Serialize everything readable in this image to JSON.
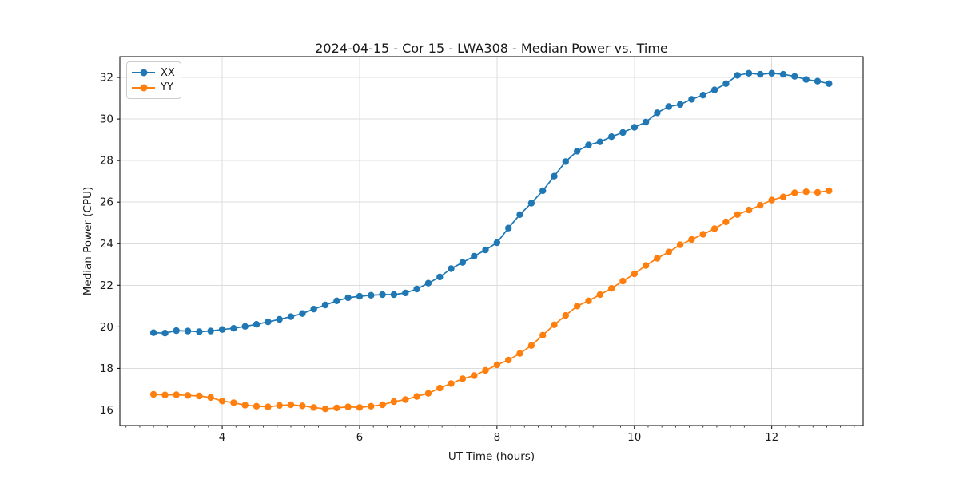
{
  "chart_data": {
    "type": "line",
    "title": "2024-04-15 - Cor 15 - LWA308 - Median Power vs. Time",
    "xlabel": "UT Time (hours)",
    "ylabel": "Median Power (CPU)",
    "xlim": [
      2.51,
      13.33
    ],
    "ylim": [
      15.25,
      33.0
    ],
    "xticks": [
      4,
      6,
      8,
      10,
      12
    ],
    "yticks": [
      16,
      18,
      20,
      22,
      24,
      26,
      28,
      30,
      32
    ],
    "minor_xticks": {
      "start": 2.6,
      "end": 13.2,
      "step": 0.2
    },
    "grid": true,
    "grid_color": "#dcdcdc",
    "spine_color": "#000000",
    "legend": {
      "position": "upper left",
      "entries": [
        "XX",
        "YY"
      ]
    },
    "x": [
      3.0,
      3.167,
      3.333,
      3.5,
      3.667,
      3.833,
      4.0,
      4.167,
      4.333,
      4.5,
      4.667,
      4.833,
      5.0,
      5.167,
      5.333,
      5.5,
      5.667,
      5.833,
      6.0,
      6.167,
      6.333,
      6.5,
      6.667,
      6.833,
      7.0,
      7.167,
      7.333,
      7.5,
      7.667,
      7.833,
      8.0,
      8.167,
      8.333,
      8.5,
      8.667,
      8.833,
      9.0,
      9.167,
      9.333,
      9.5,
      9.667,
      9.833,
      10.0,
      10.167,
      10.333,
      10.5,
      10.667,
      10.833,
      11.0,
      11.167,
      11.333,
      11.5,
      11.667,
      11.833,
      12.0,
      12.167,
      12.333,
      12.5,
      12.667,
      12.833
    ],
    "series": [
      {
        "name": "XX",
        "color": "#1f77b4",
        "values": [
          19.72,
          19.7,
          19.82,
          19.8,
          19.77,
          19.8,
          19.87,
          19.93,
          20.02,
          20.12,
          20.24,
          20.36,
          20.49,
          20.64,
          20.85,
          21.05,
          21.25,
          21.4,
          21.47,
          21.52,
          21.55,
          21.55,
          21.63,
          21.82,
          22.1,
          22.4,
          22.8,
          23.1,
          23.4,
          23.7,
          24.05,
          24.75,
          25.4,
          25.95,
          26.55,
          27.25,
          27.95,
          28.45,
          28.75,
          28.9,
          29.15,
          29.35,
          29.6,
          29.85,
          30.3,
          30.6,
          30.7,
          30.95,
          31.15,
          31.4,
          31.7,
          32.1,
          32.2,
          32.15,
          32.2,
          32.15,
          32.05,
          31.9,
          31.82,
          31.7
        ]
      },
      {
        "name": "YY",
        "color": "#ff7f0e",
        "values": [
          16.75,
          16.72,
          16.73,
          16.7,
          16.67,
          16.6,
          16.43,
          16.35,
          16.23,
          16.18,
          16.15,
          16.22,
          16.25,
          16.2,
          16.12,
          16.05,
          16.1,
          16.15,
          16.12,
          16.18,
          16.25,
          16.4,
          16.5,
          16.65,
          16.8,
          17.05,
          17.27,
          17.5,
          17.65,
          17.9,
          18.17,
          18.4,
          18.72,
          19.1,
          19.6,
          20.1,
          20.55,
          21.0,
          21.25,
          21.55,
          21.85,
          22.2,
          22.55,
          22.95,
          23.3,
          23.6,
          23.95,
          24.2,
          24.45,
          24.72,
          25.05,
          25.4,
          25.62,
          25.85,
          26.1,
          26.25,
          26.45,
          26.5,
          26.47,
          26.55
        ]
      }
    ]
  }
}
